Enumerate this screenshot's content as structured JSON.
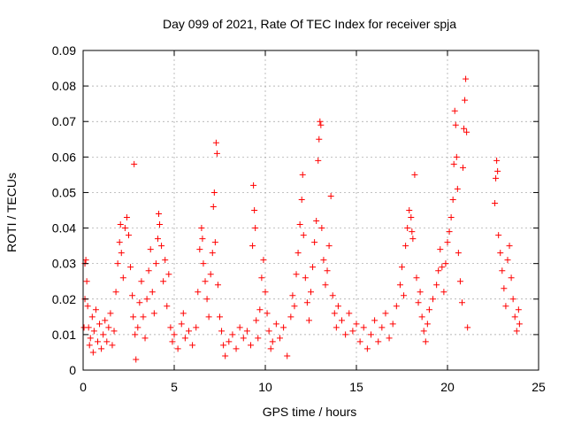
{
  "colors": {
    "series": "#ff0000",
    "axis": "#000000",
    "grid": "#a0a0a0",
    "background": "#ffffff"
  },
  "chart_data": {
    "type": "scatter",
    "title": "Day 099 of 2021, Rate Of TEC Index for receiver spja",
    "xlabel": "GPS time / hours",
    "ylabel": "ROTI / TECUs",
    "xlim": [
      0,
      25
    ],
    "ylim": [
      0,
      0.09
    ],
    "xticks": [
      0,
      5,
      10,
      15,
      20,
      25
    ],
    "xtick_labels": [
      "0",
      "5",
      "10",
      "15",
      "20",
      "25"
    ],
    "yticks": [
      0,
      0.01,
      0.02,
      0.03,
      0.04,
      0.05,
      0.06,
      0.07,
      0.08,
      0.09
    ],
    "ytick_labels": [
      "0",
      "0.01",
      "0.02",
      "0.03",
      "0.04",
      "0.05",
      "0.06",
      "0.07",
      "0.08",
      "0.09"
    ],
    "grid": true,
    "marker": "plus",
    "series": [
      {
        "name": "ROTI",
        "points": [
          [
            0.05,
            0.012
          ],
          [
            0.1,
            0.02
          ],
          [
            0.1,
            0.03
          ],
          [
            0.15,
            0.031
          ],
          [
            0.2,
            0.025
          ],
          [
            0.25,
            0.018
          ],
          [
            0.3,
            0.012
          ],
          [
            0.35,
            0.007
          ],
          [
            0.4,
            0.009
          ],
          [
            0.5,
            0.015
          ],
          [
            0.55,
            0.005
          ],
          [
            0.6,
            0.011
          ],
          [
            0.7,
            0.017
          ],
          [
            0.8,
            0.008
          ],
          [
            0.9,
            0.013
          ],
          [
            1.0,
            0.006
          ],
          [
            1.1,
            0.01
          ],
          [
            1.2,
            0.014
          ],
          [
            1.3,
            0.008
          ],
          [
            1.4,
            0.012
          ],
          [
            1.5,
            0.016
          ],
          [
            1.6,
            0.007
          ],
          [
            1.7,
            0.011
          ],
          [
            1.8,
            0.022
          ],
          [
            1.9,
            0.03
          ],
          [
            2.0,
            0.036
          ],
          [
            2.05,
            0.041
          ],
          [
            2.1,
            0.033
          ],
          [
            2.2,
            0.026
          ],
          [
            2.3,
            0.04
          ],
          [
            2.4,
            0.043
          ],
          [
            2.5,
            0.038
          ],
          [
            2.6,
            0.029
          ],
          [
            2.7,
            0.021
          ],
          [
            2.75,
            0.015
          ],
          [
            2.8,
            0.058
          ],
          [
            2.85,
            0.01
          ],
          [
            2.9,
            0.003
          ],
          [
            3.0,
            0.012
          ],
          [
            3.1,
            0.019
          ],
          [
            3.2,
            0.025
          ],
          [
            3.3,
            0.015
          ],
          [
            3.4,
            0.009
          ],
          [
            3.5,
            0.02
          ],
          [
            3.6,
            0.028
          ],
          [
            3.7,
            0.034
          ],
          [
            3.8,
            0.022
          ],
          [
            3.9,
            0.016
          ],
          [
            4.0,
            0.03
          ],
          [
            4.1,
            0.037
          ],
          [
            4.15,
            0.044
          ],
          [
            4.2,
            0.041
          ],
          [
            4.3,
            0.035
          ],
          [
            4.4,
            0.025
          ],
          [
            4.5,
            0.031
          ],
          [
            4.6,
            0.018
          ],
          [
            4.7,
            0.027
          ],
          [
            4.8,
            0.012
          ],
          [
            4.9,
            0.008
          ],
          [
            5.0,
            0.01
          ],
          [
            5.2,
            0.006
          ],
          [
            5.4,
            0.013
          ],
          [
            5.5,
            0.016
          ],
          [
            5.6,
            0.009
          ],
          [
            5.8,
            0.011
          ],
          [
            6.0,
            0.007
          ],
          [
            6.2,
            0.012
          ],
          [
            6.3,
            0.022
          ],
          [
            6.4,
            0.034
          ],
          [
            6.5,
            0.04
          ],
          [
            6.55,
            0.037
          ],
          [
            6.6,
            0.03
          ],
          [
            6.7,
            0.025
          ],
          [
            6.8,
            0.02
          ],
          [
            6.9,
            0.015
          ],
          [
            7.0,
            0.027
          ],
          [
            7.1,
            0.033
          ],
          [
            7.15,
            0.046
          ],
          [
            7.2,
            0.05
          ],
          [
            7.25,
            0.036
          ],
          [
            7.3,
            0.064
          ],
          [
            7.35,
            0.061
          ],
          [
            7.4,
            0.024
          ],
          [
            7.5,
            0.015
          ],
          [
            7.6,
            0.011
          ],
          [
            7.7,
            0.007
          ],
          [
            7.8,
            0.004
          ],
          [
            8.0,
            0.008
          ],
          [
            8.2,
            0.01
          ],
          [
            8.4,
            0.006
          ],
          [
            8.6,
            0.012
          ],
          [
            8.8,
            0.009
          ],
          [
            9.0,
            0.011
          ],
          [
            9.2,
            0.007
          ],
          [
            9.3,
            0.035
          ],
          [
            9.35,
            0.052
          ],
          [
            9.4,
            0.045
          ],
          [
            9.45,
            0.04
          ],
          [
            9.5,
            0.014
          ],
          [
            9.6,
            0.009
          ],
          [
            9.7,
            0.017
          ],
          [
            9.8,
            0.026
          ],
          [
            9.9,
            0.031
          ],
          [
            10.0,
            0.022
          ],
          [
            10.1,
            0.016
          ],
          [
            10.2,
            0.011
          ],
          [
            10.3,
            0.006
          ],
          [
            10.4,
            0.008
          ],
          [
            10.6,
            0.013
          ],
          [
            10.8,
            0.009
          ],
          [
            11.0,
            0.012
          ],
          [
            11.2,
            0.004
          ],
          [
            11.4,
            0.015
          ],
          [
            11.5,
            0.021
          ],
          [
            11.6,
            0.018
          ],
          [
            11.7,
            0.027
          ],
          [
            11.8,
            0.033
          ],
          [
            11.9,
            0.041
          ],
          [
            12.0,
            0.048
          ],
          [
            12.05,
            0.055
          ],
          [
            12.1,
            0.038
          ],
          [
            12.2,
            0.026
          ],
          [
            12.3,
            0.019
          ],
          [
            12.4,
            0.014
          ],
          [
            12.5,
            0.022
          ],
          [
            12.6,
            0.029
          ],
          [
            12.7,
            0.036
          ],
          [
            12.8,
            0.042
          ],
          [
            12.9,
            0.059
          ],
          [
            12.95,
            0.065
          ],
          [
            13.0,
            0.07
          ],
          [
            13.05,
            0.069
          ],
          [
            13.1,
            0.04
          ],
          [
            13.2,
            0.031
          ],
          [
            13.3,
            0.024
          ],
          [
            13.4,
            0.028
          ],
          [
            13.5,
            0.035
          ],
          [
            13.6,
            0.049
          ],
          [
            13.7,
            0.021
          ],
          [
            13.8,
            0.016
          ],
          [
            13.9,
            0.012
          ],
          [
            14.0,
            0.018
          ],
          [
            14.2,
            0.014
          ],
          [
            14.4,
            0.01
          ],
          [
            14.6,
            0.016
          ],
          [
            14.8,
            0.011
          ],
          [
            15.0,
            0.013
          ],
          [
            15.2,
            0.008
          ],
          [
            15.4,
            0.012
          ],
          [
            15.6,
            0.006
          ],
          [
            15.8,
            0.01
          ],
          [
            16.0,
            0.014
          ],
          [
            16.2,
            0.008
          ],
          [
            16.4,
            0.012
          ],
          [
            16.6,
            0.016
          ],
          [
            16.8,
            0.009
          ],
          [
            17.0,
            0.013
          ],
          [
            17.2,
            0.018
          ],
          [
            17.4,
            0.024
          ],
          [
            17.5,
            0.029
          ],
          [
            17.6,
            0.021
          ],
          [
            17.7,
            0.035
          ],
          [
            17.8,
            0.04
          ],
          [
            17.9,
            0.045
          ],
          [
            18.0,
            0.043
          ],
          [
            18.05,
            0.039
          ],
          [
            18.1,
            0.037
          ],
          [
            18.2,
            0.055
          ],
          [
            18.3,
            0.026
          ],
          [
            18.4,
            0.019
          ],
          [
            18.5,
            0.022
          ],
          [
            18.6,
            0.015
          ],
          [
            18.7,
            0.011
          ],
          [
            18.8,
            0.008
          ],
          [
            18.9,
            0.013
          ],
          [
            19.0,
            0.017
          ],
          [
            19.2,
            0.02
          ],
          [
            19.4,
            0.024
          ],
          [
            19.5,
            0.028
          ],
          [
            19.6,
            0.034
          ],
          [
            19.7,
            0.029
          ],
          [
            19.8,
            0.022
          ],
          [
            19.9,
            0.03
          ],
          [
            20.0,
            0.036
          ],
          [
            20.1,
            0.039
          ],
          [
            20.2,
            0.043
          ],
          [
            20.3,
            0.048
          ],
          [
            20.35,
            0.058
          ],
          [
            20.4,
            0.073
          ],
          [
            20.45,
            0.069
          ],
          [
            20.5,
            0.06
          ],
          [
            20.55,
            0.051
          ],
          [
            20.6,
            0.033
          ],
          [
            20.7,
            0.025
          ],
          [
            20.8,
            0.019
          ],
          [
            20.85,
            0.057
          ],
          [
            20.9,
            0.068
          ],
          [
            20.95,
            0.076
          ],
          [
            21.0,
            0.082
          ],
          [
            21.05,
            0.067
          ],
          [
            21.1,
            0.012
          ],
          [
            22.6,
            0.047
          ],
          [
            22.65,
            0.054
          ],
          [
            22.7,
            0.059
          ],
          [
            22.75,
            0.056
          ],
          [
            22.8,
            0.038
          ],
          [
            22.9,
            0.033
          ],
          [
            23.0,
            0.028
          ],
          [
            23.1,
            0.023
          ],
          [
            23.2,
            0.018
          ],
          [
            23.3,
            0.031
          ],
          [
            23.4,
            0.035
          ],
          [
            23.5,
            0.026
          ],
          [
            23.6,
            0.02
          ],
          [
            23.7,
            0.015
          ],
          [
            23.8,
            0.011
          ],
          [
            23.9,
            0.017
          ],
          [
            23.95,
            0.013
          ]
        ]
      }
    ]
  }
}
